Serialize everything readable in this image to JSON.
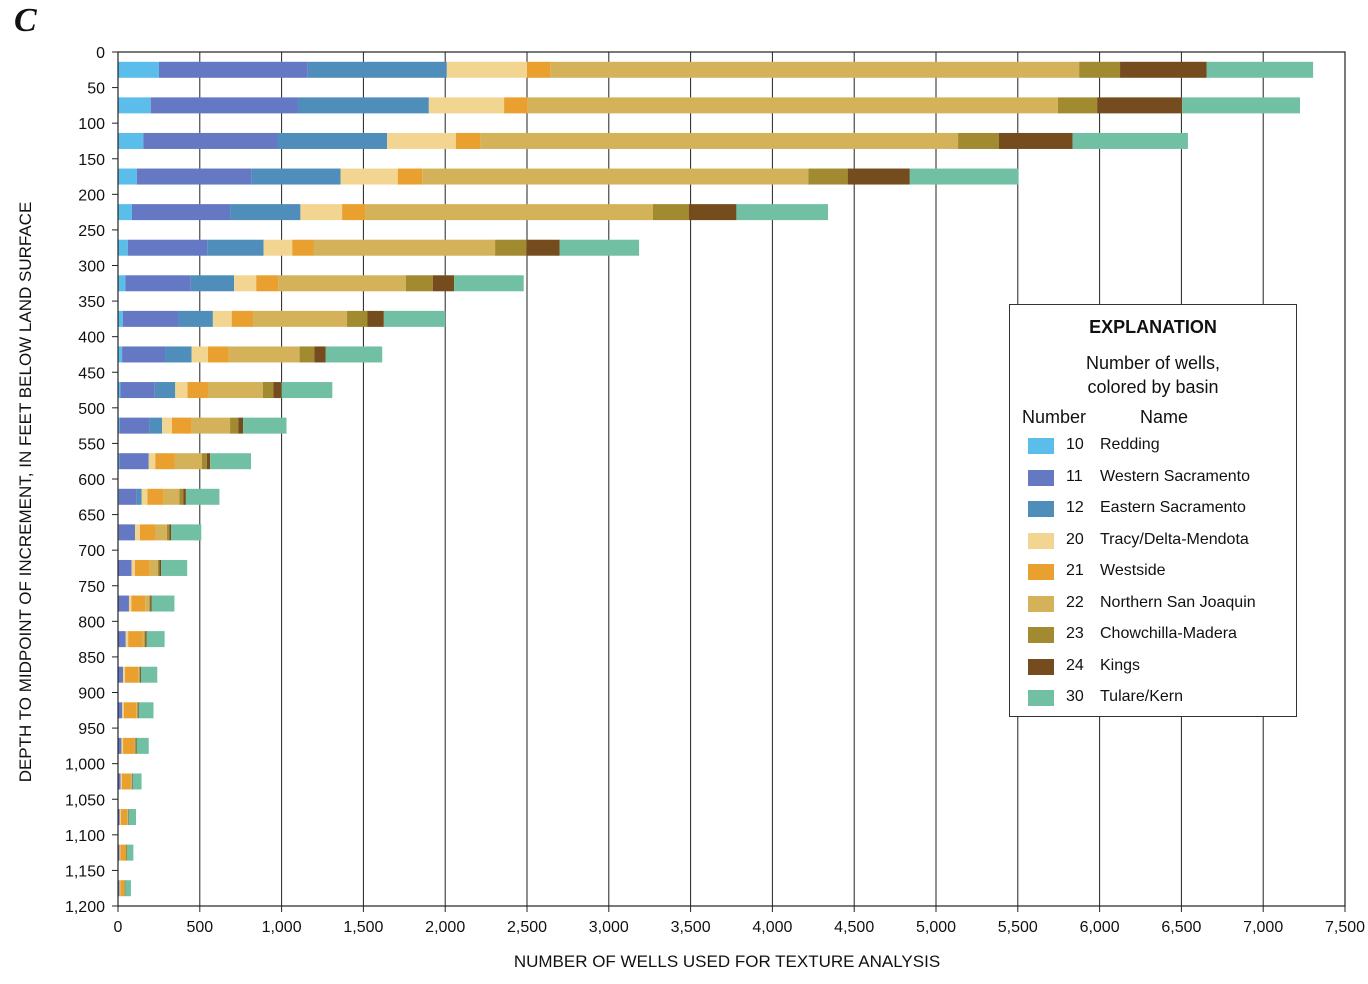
{
  "panel_letter": "C",
  "chart_data": {
    "type": "bar",
    "orientation": "horizontal",
    "stacked": true,
    "xlabel": "NUMBER OF WELLS USED FOR TEXTURE ANALYSIS",
    "ylabel": "DEPTH TO MIDPOINT OF INCREMENT, IN FEET BELOW LAND SURFACE",
    "xlim": [
      0,
      7500
    ],
    "ylim": [
      0,
      1200
    ],
    "x_ticks": [
      0,
      500,
      1000,
      1500,
      2000,
      2500,
      3000,
      3500,
      4000,
      4500,
      5000,
      5500,
      6000,
      6500,
      7000,
      7500
    ],
    "x_tick_labels": [
      "0",
      "500",
      "1,000",
      "1,500",
      "2,000",
      "2,500",
      "3,000",
      "3,500",
      "4,000",
      "4,500",
      "5,000",
      "5,500",
      "6,000",
      "6,500",
      "7,000",
      "7,500"
    ],
    "y_ticks": [
      0,
      50,
      100,
      150,
      200,
      250,
      300,
      350,
      400,
      450,
      500,
      550,
      600,
      650,
      700,
      750,
      800,
      850,
      900,
      950,
      1000,
      1050,
      1100,
      1150,
      1200
    ],
    "y_tick_labels": [
      "0",
      "50",
      "100",
      "150",
      "200",
      "250",
      "300",
      "350",
      "400",
      "450",
      "500",
      "550",
      "600",
      "650",
      "700",
      "750",
      "800",
      "850",
      "900",
      "950",
      "1,000",
      "1,050",
      "1,100",
      "1,150",
      "1,200"
    ],
    "grid": "vertical",
    "depths": [
      25,
      75,
      125,
      175,
      225,
      275,
      325,
      375,
      425,
      475,
      525,
      575,
      625,
      675,
      725,
      775,
      825,
      875,
      925,
      975,
      1025,
      1075,
      1125,
      1175
    ],
    "series": [
      {
        "number": "10",
        "name": "Redding",
        "color": "#5bbde9",
        "values": [
          250,
          200,
          155,
          115,
          85,
          60,
          45,
          30,
          25,
          15,
          10,
          8,
          5,
          4,
          3,
          2,
          2,
          1,
          1,
          1,
          1,
          1,
          1,
          1
        ]
      },
      {
        "number": "11",
        "name": "Western Sacramento",
        "color": "#6478c4",
        "values": [
          910,
          900,
          820,
          700,
          600,
          485,
          400,
          340,
          265,
          210,
          180,
          180,
          110,
          100,
          80,
          65,
          45,
          30,
          25,
          20,
          15,
          10,
          8,
          8
        ]
      },
      {
        "number": "12",
        "name": "Eastern Sacramento",
        "color": "#4f8dba",
        "values": [
          850,
          800,
          670,
          545,
          430,
          345,
          265,
          210,
          160,
          125,
          80,
          0,
          30,
          0,
          0,
          0,
          0,
          0,
          0,
          0,
          0,
          0,
          0,
          0
        ]
      },
      {
        "number": "20",
        "name": "Tracy/Delta-Mendota",
        "color": "#f3d592",
        "values": [
          490,
          460,
          420,
          350,
          255,
          175,
          135,
          115,
          100,
          75,
          60,
          40,
          35,
          30,
          20,
          15,
          15,
          12,
          10,
          10,
          8,
          6,
          5,
          5
        ]
      },
      {
        "number": "21",
        "name": "Westside",
        "color": "#e9a02e",
        "values": [
          145,
          145,
          150,
          150,
          140,
          130,
          135,
          130,
          125,
          125,
          120,
          120,
          100,
          95,
          90,
          85,
          90,
          80,
          75,
          70,
          55,
          40,
          35,
          25
        ]
      },
      {
        "number": "22",
        "name": "Northern San Joaquin",
        "color": "#d4b25a",
        "values": [
          3230,
          3240,
          2920,
          2360,
          1760,
          1110,
          780,
          575,
          435,
          335,
          235,
          165,
          95,
          70,
          50,
          25,
          10,
          8,
          8,
          5,
          5,
          3,
          2,
          2
        ]
      },
      {
        "number": "23",
        "name": "Chowchilla-Madera",
        "color": "#a18a30",
        "values": [
          250,
          240,
          250,
          240,
          220,
          190,
          165,
          125,
          90,
          65,
          50,
          30,
          25,
          15,
          10,
          5,
          5,
          3,
          3,
          2,
          2,
          2,
          1,
          1
        ]
      },
      {
        "number": "24",
        "name": "Kings",
        "color": "#744c1e",
        "values": [
          530,
          520,
          450,
          380,
          290,
          205,
          130,
          100,
          70,
          50,
          30,
          20,
          15,
          10,
          10,
          8,
          8,
          6,
          5,
          5,
          3,
          3,
          2,
          2
        ]
      },
      {
        "number": "30",
        "name": "Tulare/Kern",
        "color": "#72c0a3",
        "values": [
          650,
          720,
          705,
          665,
          560,
          485,
          425,
          375,
          345,
          310,
          265,
          250,
          205,
          185,
          160,
          140,
          110,
          100,
          90,
          75,
          55,
          45,
          40,
          35
        ]
      }
    ]
  },
  "legend": {
    "title": "EXPLANATION",
    "subtitle_line1": "Number of wells,",
    "subtitle_line2": "colored by basin",
    "header_number": "Number",
    "header_name": "Name"
  }
}
